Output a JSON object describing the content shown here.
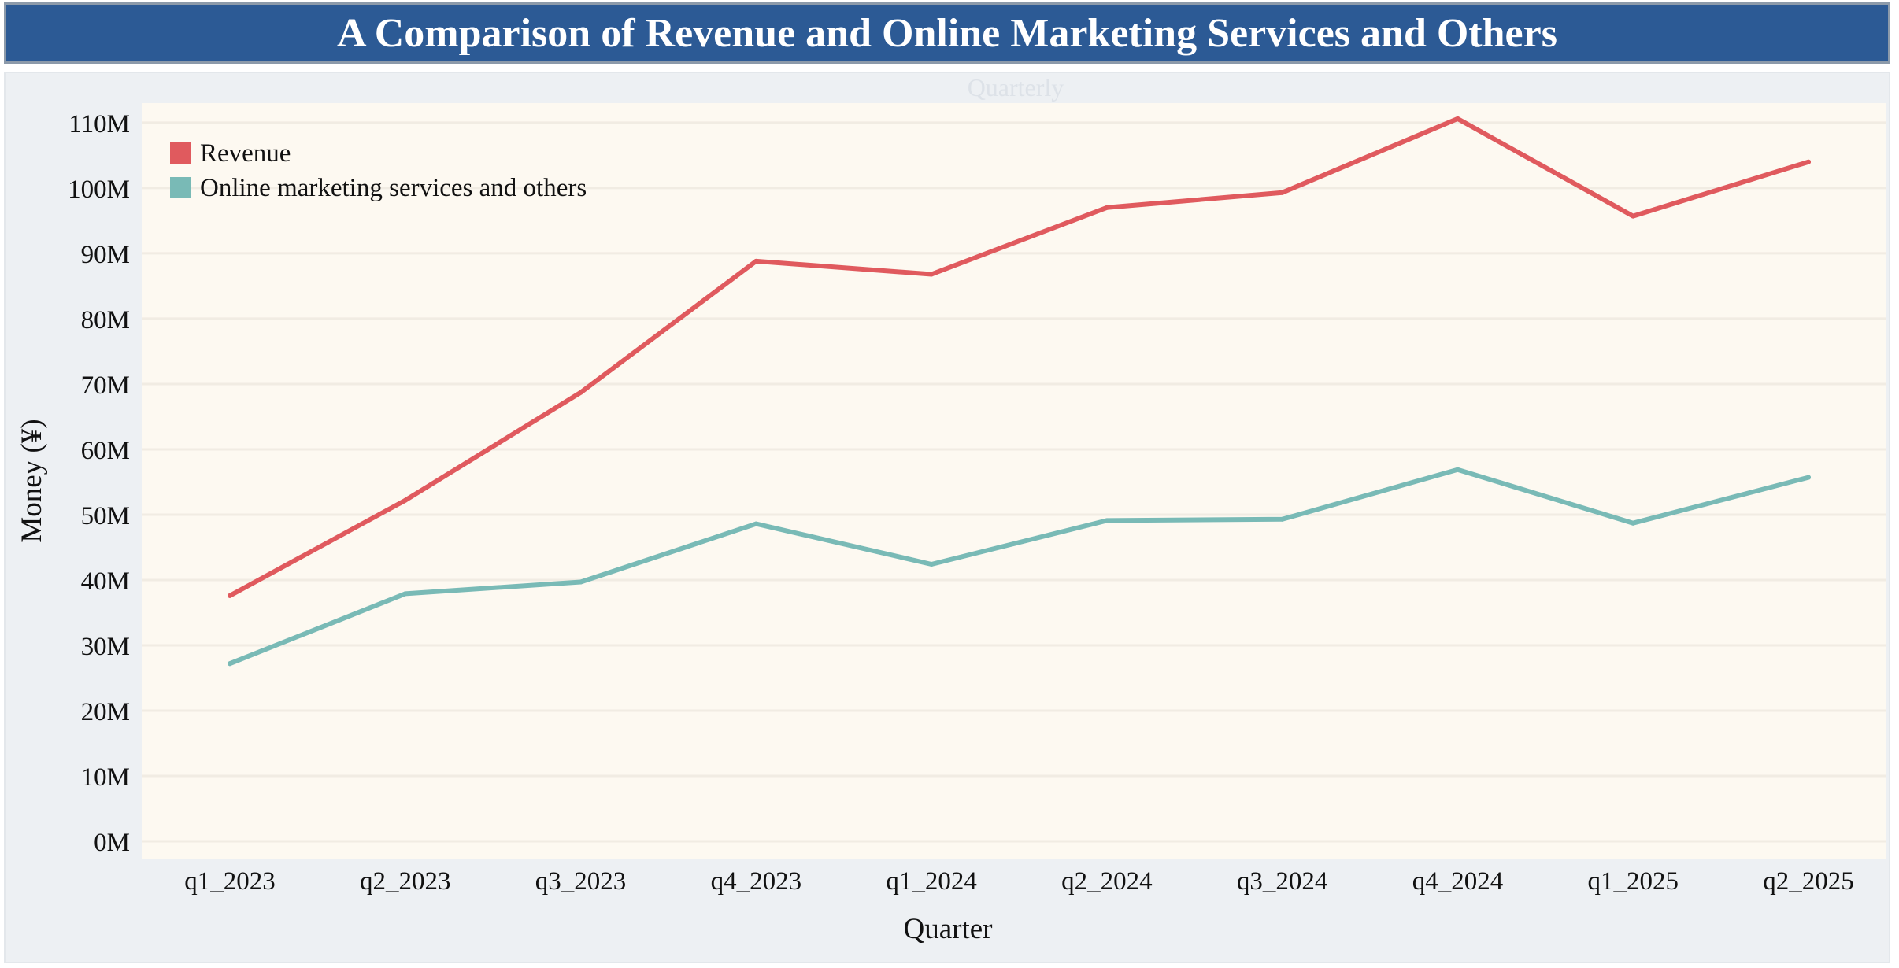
{
  "title": "A Comparison of Revenue and Online Marketing Services and Others",
  "colors": {
    "title_bg": "#2c5a95",
    "plot_bg": "#fdf9f1",
    "frame_bg": "#edf0f3",
    "revenue": "#e05a5e",
    "online": "#79bab6"
  },
  "chart_data": {
    "type": "line",
    "subtitle": "Quarterly",
    "xlabel": "Quarter",
    "ylabel": "Money (¥)",
    "categories": [
      "q1_2023",
      "q2_2023",
      "q3_2023",
      "q4_2023",
      "q1_2024",
      "q2_2024",
      "q3_2024",
      "q4_2024",
      "q1_2025",
      "q2_2025"
    ],
    "y_ticks": [
      0,
      10,
      20,
      30,
      40,
      50,
      60,
      70,
      80,
      90,
      100,
      110
    ],
    "y_tick_labels": [
      "0M",
      "10M",
      "20M",
      "30M",
      "40M",
      "50M",
      "60M",
      "70M",
      "80M",
      "90M",
      "100M",
      "110M"
    ],
    "ylim": [
      0,
      113
    ],
    "y_unit": "M",
    "grid": true,
    "legend_position": "top-left",
    "series": [
      {
        "name": "Revenue",
        "color": "#e05a5e",
        "values": [
          37.6,
          52.2,
          68.7,
          88.8,
          86.8,
          97.0,
          99.3,
          110.6,
          95.7,
          104.0
        ]
      },
      {
        "name": "Online marketing services and others",
        "color": "#79bab6",
        "values": [
          27.2,
          37.9,
          39.7,
          48.6,
          42.4,
          49.1,
          49.3,
          56.9,
          48.7,
          55.7
        ]
      }
    ]
  }
}
